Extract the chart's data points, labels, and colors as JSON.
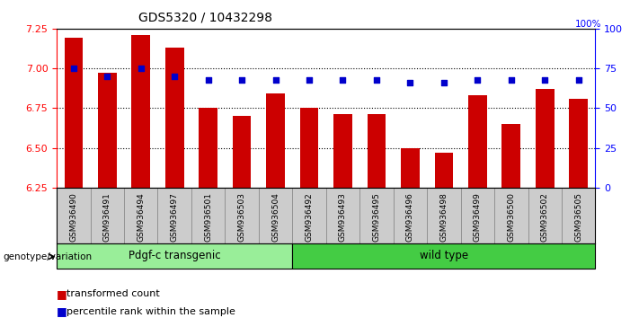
{
  "title": "GDS5320 / 10432298",
  "categories": [
    "GSM936490",
    "GSM936491",
    "GSM936494",
    "GSM936497",
    "GSM936501",
    "GSM936503",
    "GSM936504",
    "GSM936492",
    "GSM936493",
    "GSM936495",
    "GSM936496",
    "GSM936498",
    "GSM936499",
    "GSM936500",
    "GSM936502",
    "GSM936505"
  ],
  "bar_values": [
    7.19,
    6.97,
    7.21,
    7.13,
    6.75,
    6.7,
    6.84,
    6.75,
    6.71,
    6.71,
    6.5,
    6.47,
    6.83,
    6.65,
    6.87,
    6.81
  ],
  "scatter_values": [
    75,
    70,
    75,
    70,
    68,
    68,
    68,
    68,
    68,
    68,
    66,
    66,
    68,
    68,
    68,
    68
  ],
  "ylim_left": [
    6.25,
    7.25
  ],
  "ylim_right": [
    0,
    100
  ],
  "yticks_left": [
    6.25,
    6.5,
    6.75,
    7.0,
    7.25
  ],
  "yticks_right": [
    0,
    25,
    50,
    75,
    100
  ],
  "bar_color": "#cc0000",
  "scatter_color": "#0000cc",
  "group1_label": "Pdgf-c transgenic",
  "group2_label": "wild type",
  "group1_color": "#99ee99",
  "group2_color": "#44cc44",
  "group1_count": 7,
  "group2_count": 9,
  "legend_bar_label": "transformed count",
  "legend_scatter_label": "percentile rank within the sample",
  "xlabel_group": "genotype/variation",
  "background_color": "#ffffff",
  "tick_bg_color": "#cccccc",
  "right_axis_label": "100%"
}
